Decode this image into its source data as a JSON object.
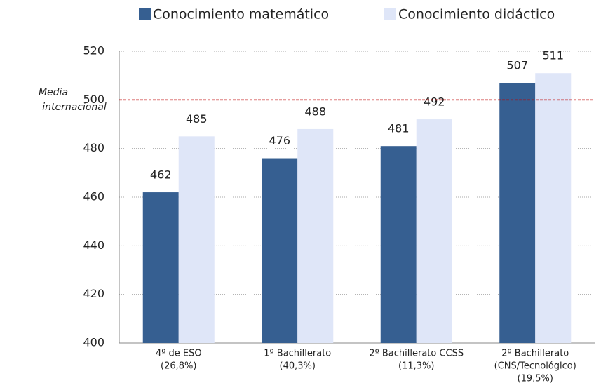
{
  "chart_data": {
    "type": "bar",
    "categories": [
      [
        "4º de ESO",
        "(26,8%)"
      ],
      [
        "1º Bachillerato",
        "(40,3%)"
      ],
      [
        "2º Bachillerato CCSS",
        "(11,3%)"
      ],
      [
        "2º Bachillerato",
        "(CNS/Tecnológico)",
        "(19,5%)"
      ]
    ],
    "series": [
      {
        "name": "Conocimiento matemático",
        "color": "#365f91",
        "values": [
          462,
          476,
          481,
          507
        ]
      },
      {
        "name": "Conocimiento didáctico",
        "color": "#dfe6f8",
        "values": [
          485,
          488,
          492,
          511
        ]
      }
    ],
    "ylim": [
      400,
      520
    ],
    "yticks": [
      400,
      420,
      440,
      460,
      480,
      500,
      520
    ],
    "grid": true,
    "reference_line": {
      "value": 500,
      "label": [
        "Media",
        "internacional"
      ],
      "color": "#c00000"
    }
  }
}
